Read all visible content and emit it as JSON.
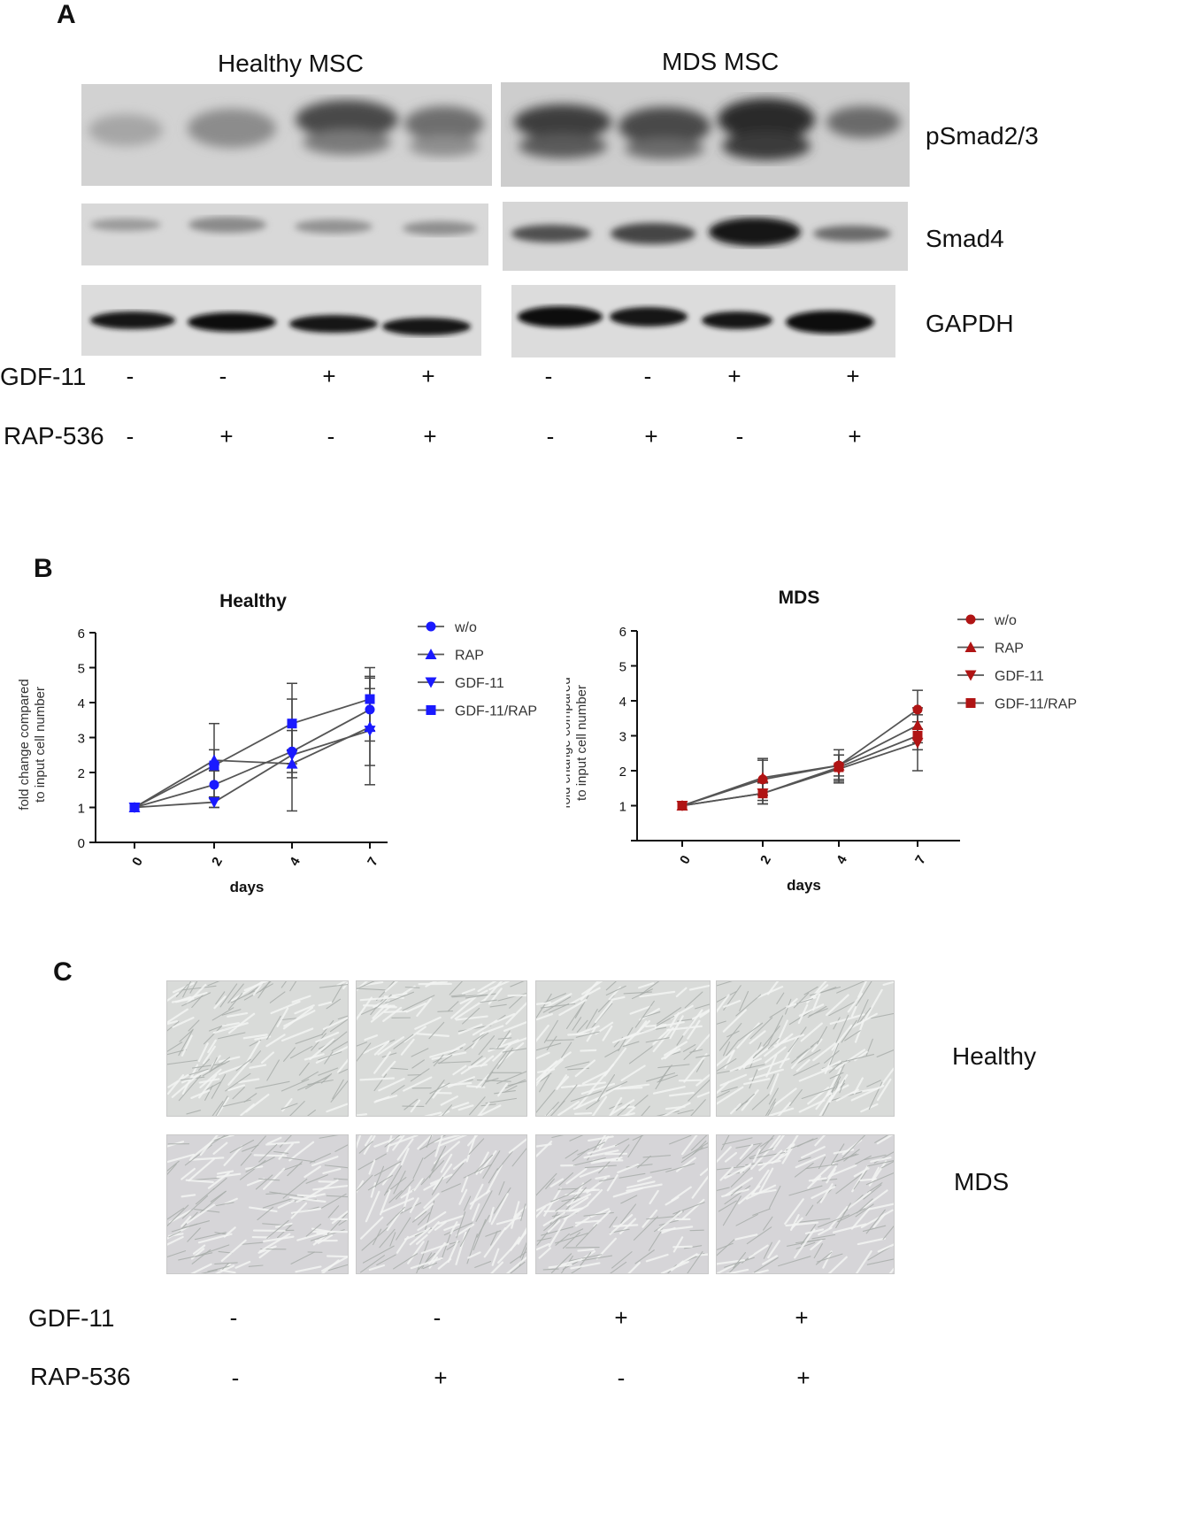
{
  "panelA": {
    "letter": "A",
    "groups": [
      "Healthy MSC",
      "MDS MSC"
    ],
    "proteins": [
      "pSmad2/3",
      "Smad4",
      "GAPDH"
    ],
    "treatments": [
      {
        "name": "GDF-11",
        "healthy": [
          "-",
          "-",
          "+",
          "+"
        ],
        "mds": [
          "-",
          "-",
          "+",
          "+"
        ]
      },
      {
        "name": "RAP-536",
        "healthy": [
          "-",
          "+",
          "-",
          "+"
        ],
        "mds": [
          "-",
          "+",
          "-",
          "+"
        ]
      }
    ]
  },
  "panelB": {
    "letter": "B",
    "chart_data": [
      {
        "type": "line",
        "title": "Healthy",
        "xlabel": "days",
        "ylabel": "fold change compared to input cell number",
        "x": [
          0,
          2,
          4,
          7
        ],
        "ylim": [
          0,
          6
        ],
        "yticks": [
          0,
          1,
          2,
          3,
          4,
          5,
          6
        ],
        "color": "#1a1aff",
        "series": [
          {
            "name": "w/o",
            "marker": "circle",
            "values": [
              1,
              1.65,
              2.6,
              3.8
            ],
            "err": [
              0,
              0.4,
              0.6,
              0.9
            ]
          },
          {
            "name": "RAP",
            "marker": "triangle-up",
            "values": [
              1,
              2.35,
              2.25,
              3.3
            ],
            "err": [
              0,
              0.3,
              0.4,
              1.1
            ]
          },
          {
            "name": "GDF-11",
            "marker": "triangle-down",
            "values": [
              1,
              1.15,
              2.5,
              3.2
            ],
            "err": [
              0,
              0.15,
              1.6,
              1.55
            ]
          },
          {
            "name": "GDF-11/RAP",
            "marker": "square",
            "values": [
              1,
              2.2,
              3.4,
              4.1
            ],
            "err": [
              0,
              1.2,
              1.15,
              0.9
            ]
          }
        ],
        "legend": "right"
      },
      {
        "type": "line",
        "title": "MDS",
        "xlabel": "days",
        "ylabel": "fold change compared to input cell number",
        "x": [
          0,
          2,
          4,
          7
        ],
        "ylim": [
          0,
          6
        ],
        "yticks": [
          1,
          2,
          3,
          4,
          5,
          6
        ],
        "color": "#b01414",
        "series": [
          {
            "name": "w/o",
            "marker": "circle",
            "values": [
              1,
              1.75,
              2.15,
              3.75
            ],
            "err": [
              0,
              0.6,
              0.45,
              0.55
            ]
          },
          {
            "name": "RAP",
            "marker": "triangle-up",
            "values": [
              1,
              1.8,
              2.15,
              3.3
            ],
            "err": [
              0,
              0.5,
              0.3,
              0.5
            ]
          },
          {
            "name": "GDF-11",
            "marker": "triangle-down",
            "values": [
              1,
              1.35,
              2.05,
              2.8
            ],
            "err": [
              0,
              0.3,
              0.4,
              0.8
            ]
          },
          {
            "name": "GDF-11/RAP",
            "marker": "square",
            "values": [
              1,
              1.35,
              2.1,
              3.0
            ],
            "err": [
              0,
              0.3,
              0.35,
              0.4
            ]
          }
        ],
        "legend": "right"
      }
    ]
  },
  "panelC": {
    "letter": "C",
    "rows": [
      "Healthy",
      "MDS"
    ],
    "treatments": [
      {
        "name": "GDF-11",
        "signs": [
          "-",
          "-",
          "+",
          "+"
        ]
      },
      {
        "name": "RAP-536",
        "signs": [
          "-",
          "+",
          "-",
          "+"
        ]
      }
    ]
  }
}
